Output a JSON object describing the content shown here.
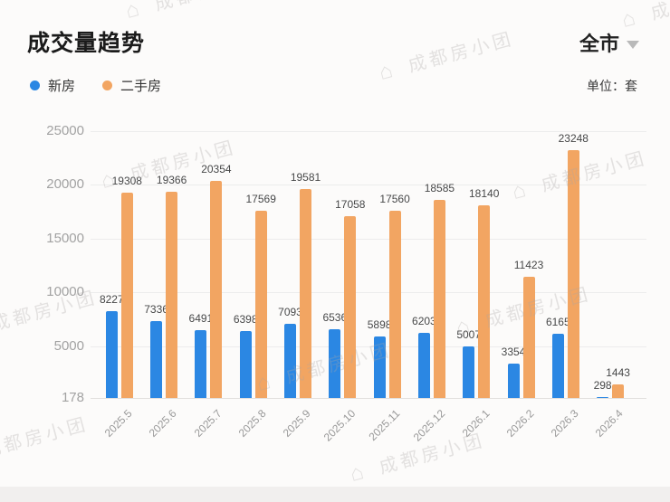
{
  "header": {
    "title": "成交量趋势",
    "region": "全市",
    "unit_label": "单位：套"
  },
  "watermark": {
    "icon": "⌂",
    "text": "成都房小团"
  },
  "chart_data": {
    "type": "bar",
    "title": "成交量趋势",
    "unit": "套",
    "categories": [
      "2025.5",
      "2025.6",
      "2025.7",
      "2025.8",
      "2025.9",
      "2025.10",
      "2025.11",
      "2025.12",
      "2026.1",
      "2026.2",
      "2026.3",
      "2026.4"
    ],
    "series": [
      {
        "id": "new-homes",
        "name": "新房",
        "color": "#2b87e3",
        "values": [
          8227,
          7336,
          6491,
          6398,
          7093,
          6536,
          5898,
          6203,
          5007,
          3354,
          6165,
          298
        ]
      },
      {
        "id": "second-hand-homes",
        "name": "二手房",
        "color": "#f2a562",
        "values": [
          19308,
          19366,
          20354,
          17569,
          19581,
          17058,
          17560,
          18585,
          18140,
          11423,
          23248,
          1443
        ]
      }
    ],
    "y_min": 178,
    "y_max": 25000,
    "y_ticks": [
      178,
      5000,
      10000,
      15000,
      20000,
      25000
    ],
    "grid": true,
    "legend_position": "top-left"
  }
}
